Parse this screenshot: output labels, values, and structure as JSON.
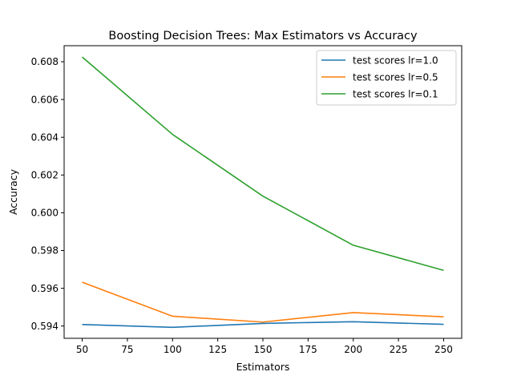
{
  "chart_data": {
    "type": "line",
    "title": "Boosting Decision Trees: Max Estimators vs Accuracy",
    "xlabel": "Estimators",
    "ylabel": "Accuracy",
    "x": [
      50,
      100,
      150,
      200,
      250
    ],
    "xlim": [
      40,
      260
    ],
    "ylim": [
      0.59335,
      0.60885
    ],
    "xticks": [
      50,
      75,
      100,
      125,
      150,
      175,
      200,
      225,
      250
    ],
    "xtick_labels": [
      "50",
      "75",
      "100",
      "125",
      "150",
      "175",
      "200",
      "225",
      "250"
    ],
    "yticks": [
      0.594,
      0.596,
      0.598,
      0.6,
      0.602,
      0.604,
      0.606,
      0.608
    ],
    "ytick_labels": [
      "0.594",
      "0.596",
      "0.598",
      "0.600",
      "0.602",
      "0.604",
      "0.606",
      "0.608"
    ],
    "grid": false,
    "legend_position": "top-right",
    "series": [
      {
        "name": "test scores lr=1.0",
        "color": "#1f77b4",
        "values": [
          0.59408,
          0.59393,
          0.59414,
          0.59423,
          0.59409
        ]
      },
      {
        "name": "test scores lr=0.5",
        "color": "#ff7f0e",
        "values": [
          0.59632,
          0.59452,
          0.59421,
          0.59471,
          0.59449
        ]
      },
      {
        "name": "test scores lr=0.1",
        "color": "#2ca02c",
        "values": [
          0.60825,
          0.60415,
          0.60088,
          0.59828,
          0.59695
        ]
      }
    ]
  }
}
